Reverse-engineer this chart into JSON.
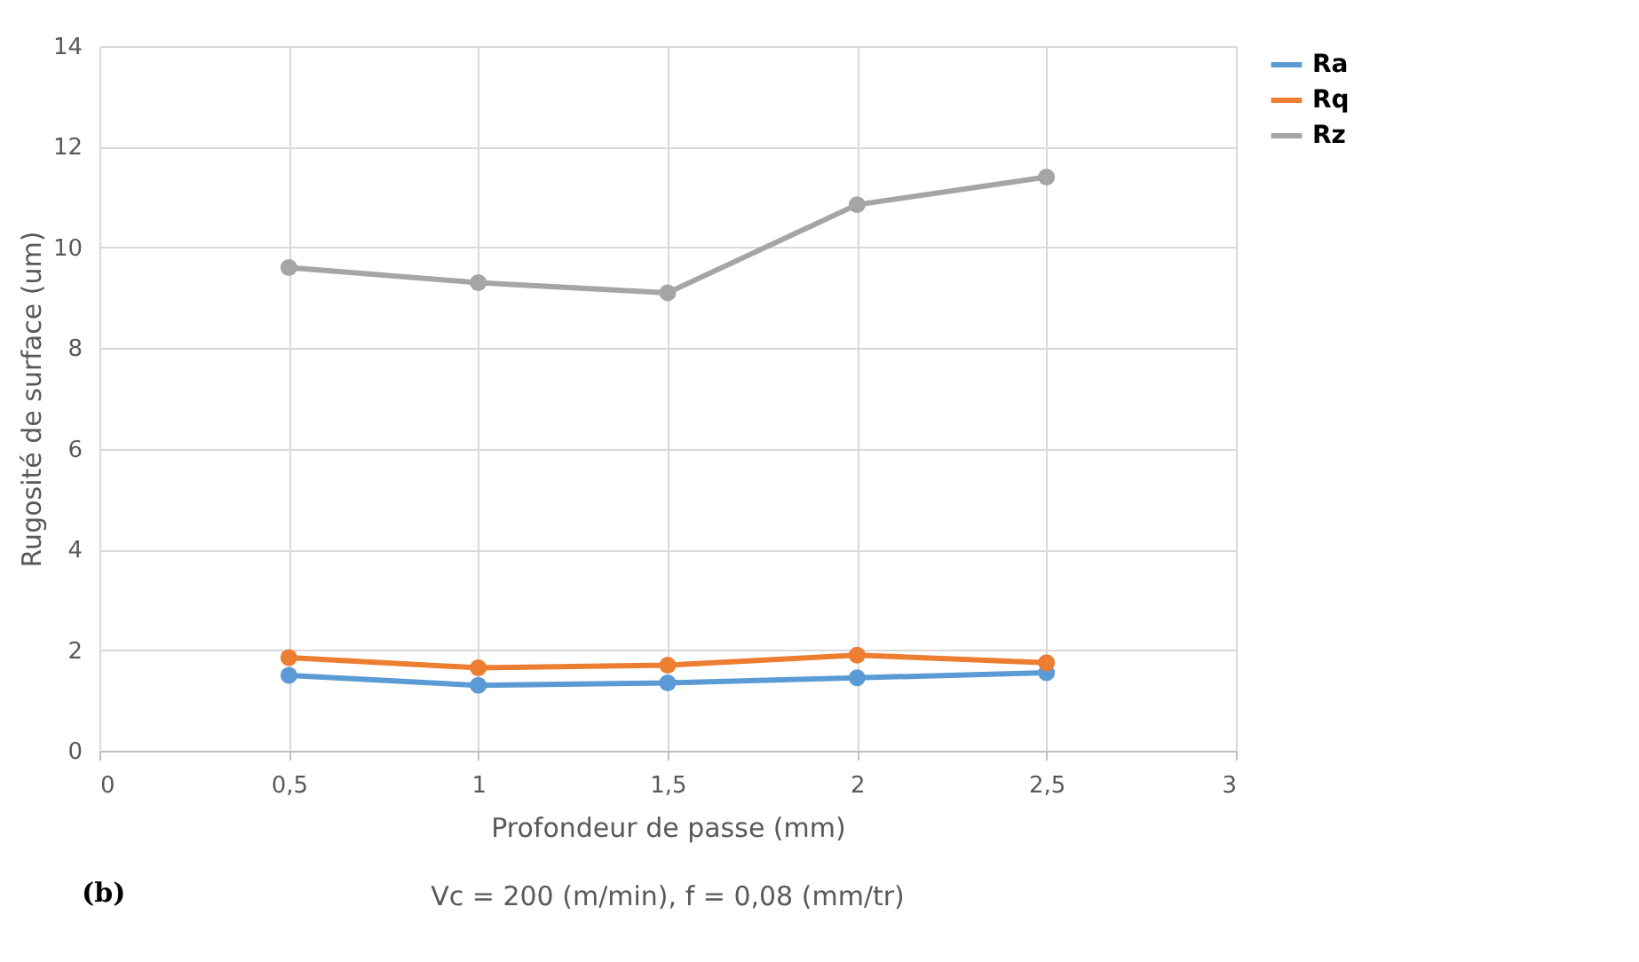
{
  "chart_data": {
    "type": "line",
    "xlabel": "Profondeur de passe (mm)",
    "ylabel": "Rugosité de surface (um)",
    "x": [
      0.5,
      1,
      1.5,
      2,
      2.5
    ],
    "series": [
      {
        "name": "Ra",
        "color": "#5b9bd5",
        "values": [
          1.5,
          1.3,
          1.35,
          1.45,
          1.55
        ]
      },
      {
        "name": "Rq",
        "color": "#ed7d31",
        "values": [
          1.85,
          1.65,
          1.7,
          1.9,
          1.75
        ]
      },
      {
        "name": "Rz",
        "color": "#a5a5a5",
        "values": [
          9.6,
          9.3,
          9.1,
          10.85,
          11.4
        ]
      }
    ],
    "xlim": [
      0,
      3
    ],
    "xticks": [
      0,
      {
        "value": 0.5,
        "label": "0,5"
      },
      1,
      {
        "value": 1.5,
        "label": "1,5"
      },
      2,
      {
        "value": 2.5,
        "label": "2,5"
      },
      3
    ],
    "ylim": [
      0,
      14
    ],
    "yticks": [
      0,
      2,
      4,
      6,
      8,
      10,
      12,
      14
    ],
    "grid": true,
    "legend": "right",
    "marker": "circle",
    "line_style": "solid",
    "annotations": [
      "(b)",
      "Vc = 200 (m/min), f = 0,08 (mm/tr)"
    ]
  }
}
